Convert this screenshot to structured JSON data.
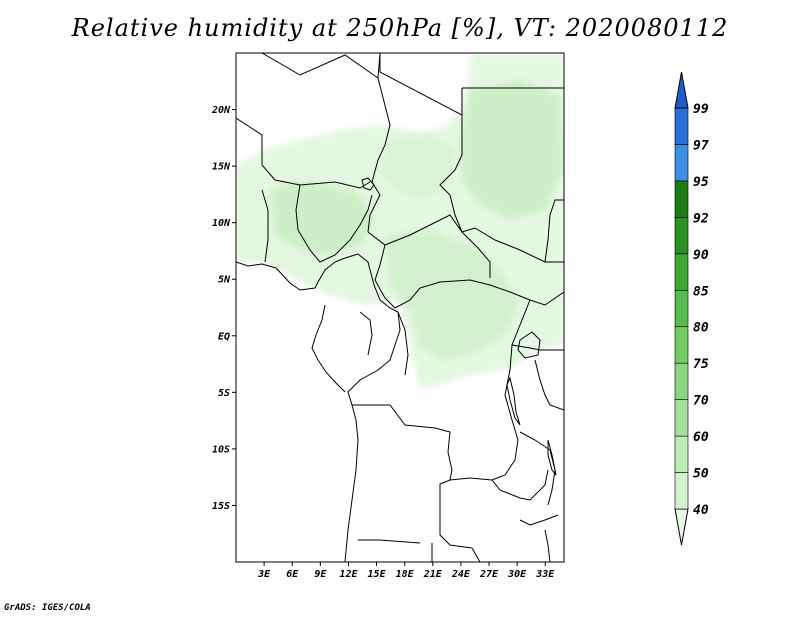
{
  "title": "Relative humidity at 250hPa [%], VT: 2020080112",
  "credit": "GrADS: IGES/COLA",
  "map": {
    "lon_range": [
      0,
      35
    ],
    "lat_range": [
      -20,
      25
    ],
    "lon_ticks": [
      "3E",
      "6E",
      "9E",
      "12E",
      "15E",
      "18E",
      "21E",
      "24E",
      "27E",
      "30E",
      "33E"
    ],
    "lat_ticks": [
      "20N",
      "15N",
      "10N",
      "5N",
      "EQ",
      "5S",
      "10S",
      "15S"
    ]
  },
  "colorbar": {
    "levels": [
      "40",
      "50",
      "60",
      "70",
      "75",
      "80",
      "85",
      "90",
      "92",
      "95",
      "97",
      "99"
    ],
    "colors": [
      "#e8f8e6",
      "#d2f2cd",
      "#bdebb5",
      "#a4e29b",
      "#8ad680",
      "#6ecb64",
      "#55bd4a",
      "#3caa32",
      "#2a9320",
      "#1c7d12",
      "#3c8ee6",
      "#2a70d8",
      "#1f5ec9"
    ]
  }
}
